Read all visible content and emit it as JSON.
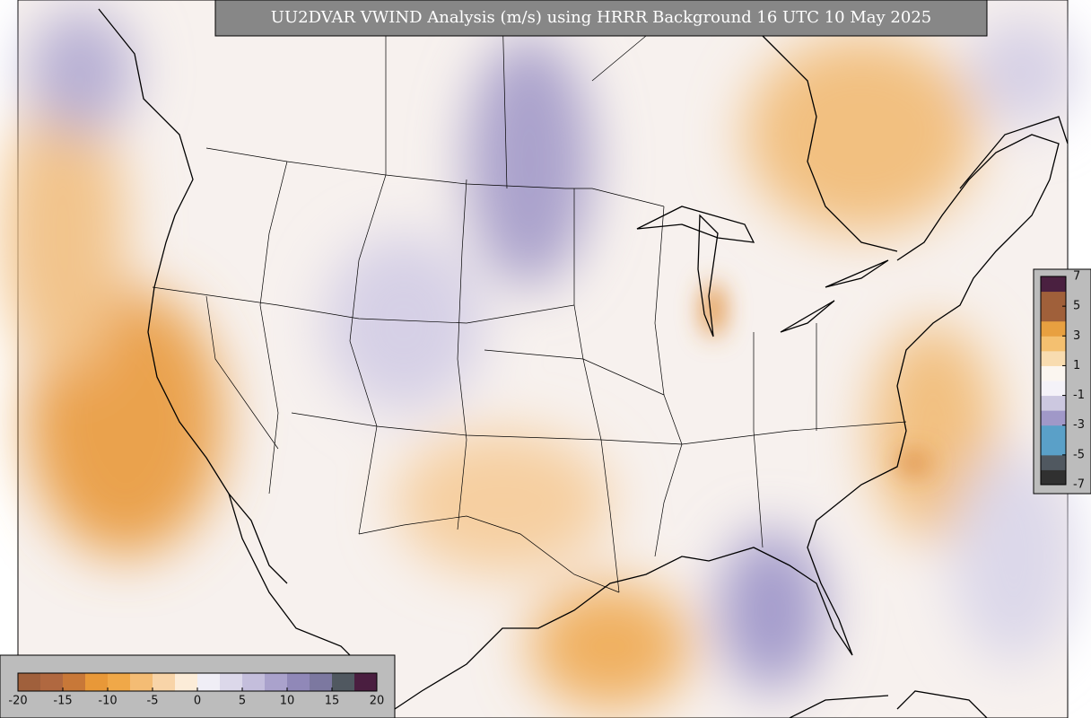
{
  "title": "UU2DVAR VWIND Analysis (m/s) using HRRR Background 16 UTC 10 May 2025",
  "colorbar_bottom": {
    "ticks": [
      -20,
      -15,
      -10,
      -5,
      0,
      5,
      10,
      15,
      20
    ],
    "colors": [
      "#a0603c",
      "#b06840",
      "#c87838",
      "#e89838",
      "#f0a848",
      "#f4bc74",
      "#f8d4a8",
      "#fcecd8",
      "#f0eef6",
      "#dcd8ea",
      "#c4bedc",
      "#aaa2cc",
      "#9088b8",
      "#7c78a0",
      "#505860",
      "#4a1e40"
    ]
  },
  "colorbar_right": {
    "ticks": [
      7,
      5,
      3,
      1,
      -1,
      -3,
      -5,
      -7
    ],
    "colors": [
      "#303030",
      "#505860",
      "#5aa0c8",
      "#5aa0c8",
      "#a098c8",
      "#ccc8e0",
      "#f4f2f8",
      "#fbf6f0",
      "#f8dcb0",
      "#f4c070",
      "#e8a040",
      "#a0603a",
      "#a0603a",
      "#4a2040"
    ]
  }
}
